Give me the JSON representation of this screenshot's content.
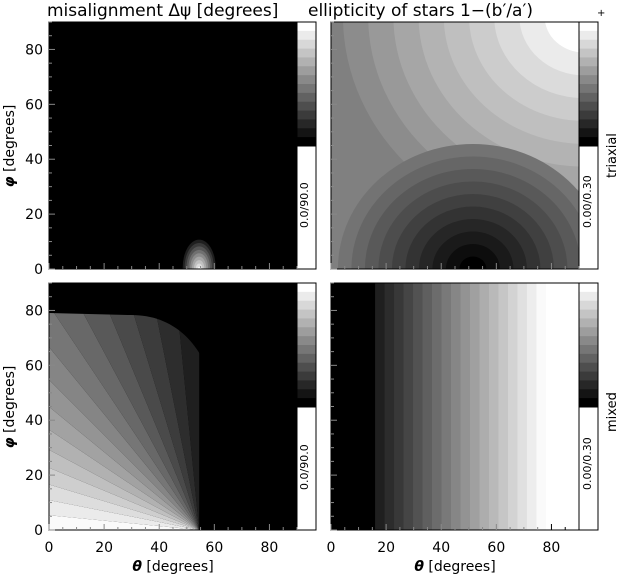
{
  "titles": {
    "left": "misalignment Δψ [degrees]",
    "right": "ellipticity of stars 1−(b′/a′)",
    "right_marker": "+"
  },
  "row_labels": {
    "top": "triaxial",
    "bottom": "mixed"
  },
  "axes": {
    "xlabel_symbol": "θ",
    "xlabel_unit": "[degrees]",
    "ylabel_symbol": "φ",
    "ylabel_unit": "[degrees]",
    "x_ticks": [
      "0",
      "20",
      "40",
      "60",
      "80"
    ],
    "y_ticks": [
      "0",
      "20",
      "40",
      "60",
      "80"
    ],
    "xlim": [
      0,
      90
    ],
    "ylim": [
      0,
      90
    ]
  },
  "colorbars": {
    "misalignment": "0.0/90.0",
    "ellipticity": "0.00/0.30"
  },
  "chart_data": [
    {
      "type": "heatmap",
      "panel": "top-left",
      "quantity": "misalignment",
      "range": [
        0,
        90
      ],
      "x": "theta",
      "y": "phi"
    },
    {
      "type": "heatmap",
      "panel": "top-right",
      "quantity": "ellipticity",
      "range": [
        0,
        0.3
      ],
      "x": "theta",
      "y": "phi"
    },
    {
      "type": "heatmap",
      "panel": "bottom-left",
      "quantity": "misalignment",
      "range": [
        0,
        90
      ],
      "x": "theta",
      "y": "phi"
    },
    {
      "type": "heatmap",
      "panel": "bottom-right",
      "quantity": "ellipticity",
      "range": [
        0,
        0.3
      ],
      "x": "theta",
      "y": "phi"
    }
  ]
}
